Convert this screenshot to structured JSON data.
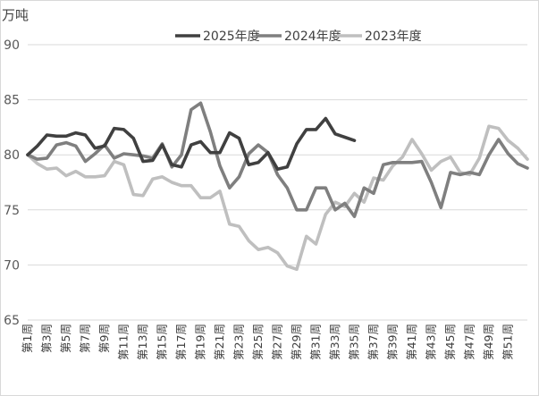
{
  "chart_data": {
    "type": "line",
    "unit_label": "万吨",
    "ylim": [
      65,
      90
    ],
    "y_ticks": [
      65,
      70,
      75,
      80,
      85,
      90
    ],
    "grid": true,
    "legend_position": "top-center",
    "x_labels": [
      "第1周",
      "第3周",
      "第5周",
      "第7周",
      "第9周",
      "第11周",
      "第13周",
      "第15周",
      "第17周",
      "第19周",
      "第21周",
      "第23周",
      "第25周",
      "第27周",
      "第29周",
      "第31周",
      "第33周",
      "第35周",
      "第37周",
      "第39周",
      "第41周",
      "第43周",
      "第45周",
      "第47周",
      "第49周",
      "第51周"
    ],
    "series": [
      {
        "name": "2025年度",
        "color": "#404040",
        "width": 3.6,
        "values": [
          80.0,
          80.8,
          81.8,
          81.7,
          81.7,
          82.0,
          81.8,
          80.6,
          80.8,
          82.4,
          82.3,
          81.5,
          79.4,
          79.5,
          80.9,
          79.1,
          78.9,
          80.9,
          81.2,
          80.2,
          80.2,
          82.0,
          81.5,
          79.1,
          79.3,
          80.2,
          78.7,
          78.9,
          81.0,
          82.3,
          82.3,
          83.3,
          81.9,
          81.6,
          81.3
        ]
      },
      {
        "name": "2024年度",
        "color": "#7f7f7f",
        "width": 3.6,
        "values": [
          80.0,
          79.6,
          79.7,
          80.9,
          81.1,
          80.8,
          79.4,
          80.1,
          80.9,
          79.7,
          80.1,
          80.0,
          79.9,
          79.7,
          81.0,
          78.9,
          80.0,
          84.1,
          84.7,
          82.1,
          79.0,
          77.0,
          78.0,
          80.1,
          80.9,
          80.2,
          78.2,
          77.0,
          75.0,
          75.0,
          77.0,
          77.0,
          75.0,
          75.6,
          74.4,
          77.0,
          76.5,
          79.1,
          79.3,
          79.3,
          79.3,
          79.4,
          77.5,
          75.2,
          78.4,
          78.2,
          78.4,
          78.2,
          80.0,
          81.4,
          80.1,
          79.2,
          78.8
        ]
      },
      {
        "name": "2023年度",
        "color": "#bfbfbf",
        "width": 3.6,
        "values": [
          80.0,
          79.2,
          78.7,
          78.8,
          78.1,
          78.5,
          78.0,
          78.0,
          78.1,
          79.4,
          79.1,
          76.4,
          76.3,
          77.8,
          78.0,
          77.5,
          77.2,
          77.2,
          76.1,
          76.1,
          76.7,
          73.7,
          73.5,
          72.2,
          71.4,
          71.6,
          71.1,
          69.9,
          69.6,
          72.6,
          71.9,
          74.6,
          75.7,
          75.3,
          76.5,
          75.7,
          77.9,
          77.7,
          79.0,
          79.8,
          81.4,
          80.1,
          78.6,
          79.4,
          79.8,
          78.4,
          78.2,
          79.7,
          82.6,
          82.4,
          81.3,
          80.6,
          79.6
        ]
      }
    ]
  }
}
